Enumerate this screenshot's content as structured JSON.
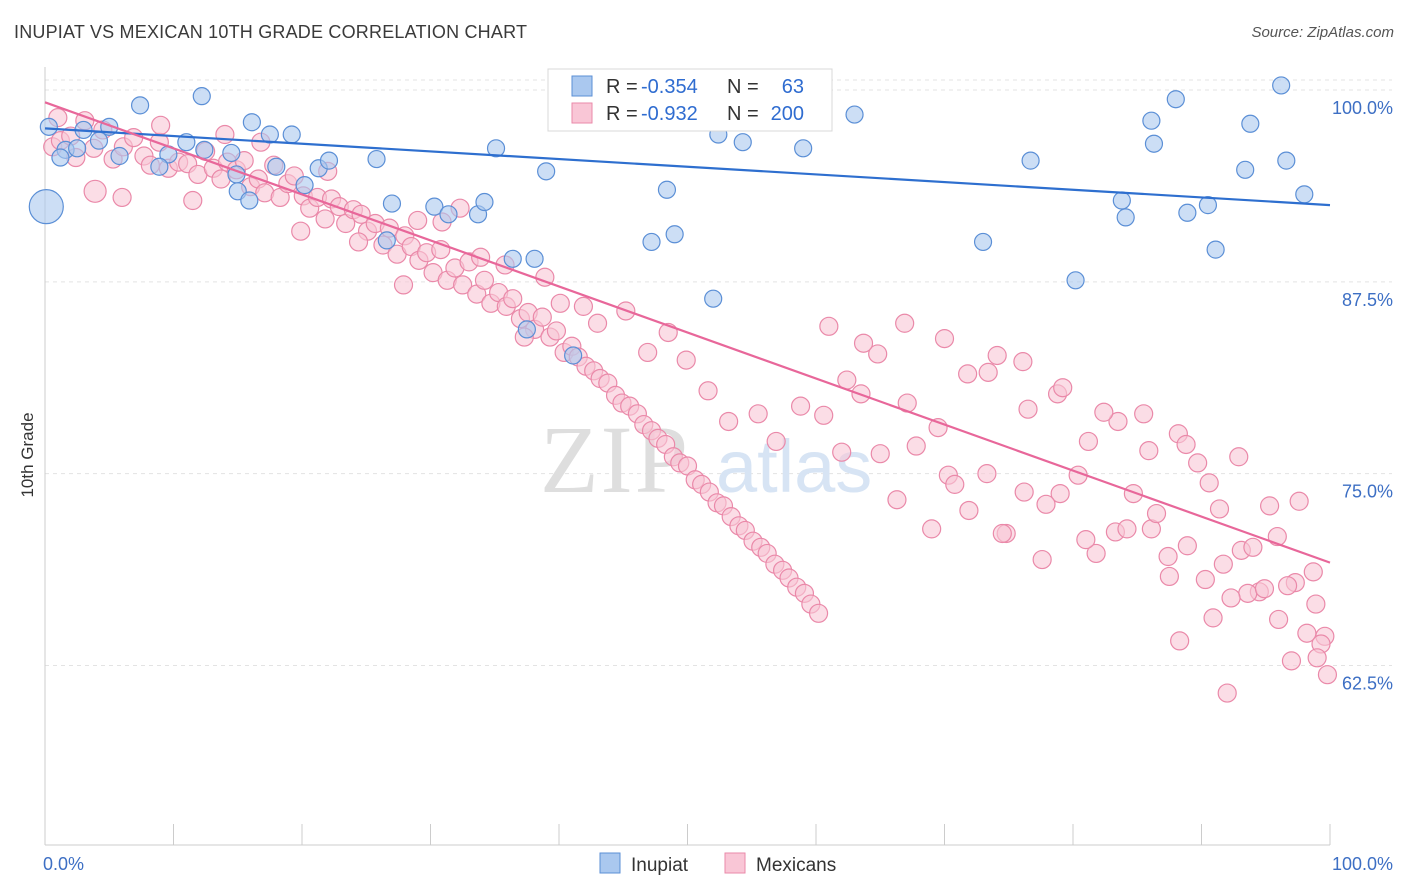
{
  "title": "INUPIAT VS MEXICAN 10TH GRADE CORRELATION CHART",
  "source": "Source: ZipAtlas.com",
  "watermark": {
    "zip": "ZIP",
    "atlas": "atlas"
  },
  "legend_box": {
    "rows": [
      {
        "r_label": "R =",
        "r_value": "-0.354",
        "n_label": "N =",
        "n_value": "63"
      },
      {
        "r_label": "R =",
        "r_value": "-0.932",
        "n_label": "N =",
        "n_value": "200"
      }
    ]
  },
  "colors": {
    "inupiat_fill": "#aac8ef",
    "inupiat_stroke": "#5b8fd6",
    "inupiat_line": "#2e6fcf",
    "mexican_fill": "#f9c6d6",
    "mexican_stroke": "#ea89a9",
    "mexican_line": "#e8679a",
    "axis_text": "#3d6fc4",
    "grid": "#e3e3e3"
  },
  "chart_data": {
    "type": "scatter",
    "title": "INUPIAT VS MEXICAN 10TH GRADE CORRELATION CHART",
    "xlabel": "",
    "ylabel": "10th Grade",
    "xlim": [
      0,
      100
    ],
    "ylim": [
      50.8,
      101.5
    ],
    "x_tick_labels": [
      "0.0%",
      "100.0%"
    ],
    "y_ticks": [
      100.0,
      87.5,
      75.0,
      62.5
    ],
    "y_tick_labels": [
      "100.0%",
      "87.5%",
      "75.0%",
      "62.5%"
    ],
    "grid": true,
    "legend_position": "bottom",
    "series": [
      {
        "name": "Inupiat",
        "R": -0.354,
        "N": 63,
        "trend": {
          "x": [
            0,
            100
          ],
          "y": [
            97.5,
            92.5
          ]
        },
        "points": [
          [
            0.3,
            97.6
          ],
          [
            1.6,
            96.1
          ],
          [
            3.0,
            97.4
          ],
          [
            5.0,
            97.6
          ],
          [
            4.2,
            96.7
          ],
          [
            5.8,
            95.7
          ],
          [
            1.2,
            95.6
          ],
          [
            2.5,
            96.2
          ],
          [
            7.4,
            99.0
          ],
          [
            9.6,
            95.8
          ],
          [
            8.9,
            95.0
          ],
          [
            12.2,
            99.6
          ],
          [
            12.4,
            96.1
          ],
          [
            11.0,
            96.6
          ],
          [
            14.5,
            95.9
          ],
          [
            14.9,
            94.5
          ],
          [
            15.0,
            93.4
          ],
          [
            15.9,
            92.8
          ],
          [
            16.1,
            97.9
          ],
          [
            17.5,
            97.1
          ],
          [
            18.0,
            95.0
          ],
          [
            19.2,
            97.1
          ],
          [
            20.2,
            93.8
          ],
          [
            21.3,
            94.9
          ],
          [
            22.1,
            95.4
          ],
          [
            25.8,
            95.5
          ],
          [
            26.6,
            90.2
          ],
          [
            27.0,
            92.6
          ],
          [
            30.3,
            92.4
          ],
          [
            31.4,
            91.9
          ],
          [
            33.7,
            91.9
          ],
          [
            34.2,
            92.7
          ],
          [
            35.1,
            96.2
          ],
          [
            36.4,
            89.0
          ],
          [
            37.5,
            84.4
          ],
          [
            38.1,
            89.0
          ],
          [
            39.0,
            94.7
          ],
          [
            41.1,
            82.7
          ],
          [
            47.2,
            90.1
          ],
          [
            48.4,
            93.5
          ],
          [
            49.0,
            90.6
          ],
          [
            52.0,
            86.4
          ],
          [
            52.4,
            97.1
          ],
          [
            54.3,
            96.6
          ],
          [
            57.2,
            99.5
          ],
          [
            59.0,
            96.2
          ],
          [
            63.0,
            98.4
          ],
          [
            73.0,
            90.1
          ],
          [
            76.7,
            95.4
          ],
          [
            80.2,
            87.6
          ],
          [
            83.8,
            92.8
          ],
          [
            84.1,
            91.7
          ],
          [
            86.1,
            98.0
          ],
          [
            86.3,
            96.5
          ],
          [
            88.0,
            99.4
          ],
          [
            88.9,
            92.0
          ],
          [
            90.5,
            92.5
          ],
          [
            91.1,
            89.6
          ],
          [
            93.4,
            94.8
          ],
          [
            93.8,
            97.8
          ],
          [
            96.2,
            100.3
          ],
          [
            96.6,
            95.4
          ],
          [
            98.0,
            93.2
          ]
        ]
      },
      {
        "name": "Mexicans",
        "R": -0.932,
        "N": 200,
        "trend": {
          "x": [
            0,
            100
          ],
          "y": [
            99.2,
            69.2
          ]
        },
        "points": [
          [
            0.6,
            96.3
          ],
          [
            1.2,
            96.7
          ],
          [
            2.4,
            95.6
          ],
          [
            3.8,
            96.2
          ],
          [
            4.5,
            97.4
          ],
          [
            5.3,
            95.5
          ],
          [
            6.1,
            96.3
          ],
          [
            6.9,
            96.9
          ],
          [
            7.7,
            95.7
          ],
          [
            8.2,
            95.1
          ],
          [
            8.9,
            96.6
          ],
          [
            9.6,
            94.9
          ],
          [
            10.4,
            95.3
          ],
          [
            11.1,
            95.2
          ],
          [
            11.9,
            94.5
          ],
          [
            12.5,
            96.0
          ],
          [
            13.1,
            94.9
          ],
          [
            13.7,
            94.2
          ],
          [
            14.2,
            95.3
          ],
          [
            14.9,
            94.8
          ],
          [
            15.5,
            95.4
          ],
          [
            16.0,
            93.7
          ],
          [
            16.6,
            94.2
          ],
          [
            17.1,
            93.3
          ],
          [
            17.8,
            95.1
          ],
          [
            18.3,
            93.0
          ],
          [
            18.9,
            93.9
          ],
          [
            19.4,
            94.4
          ],
          [
            20.1,
            93.1
          ],
          [
            20.6,
            92.3
          ],
          [
            21.2,
            93.0
          ],
          [
            21.8,
            91.6
          ],
          [
            22.3,
            92.9
          ],
          [
            22.9,
            92.4
          ],
          [
            23.4,
            91.3
          ],
          [
            24.0,
            92.2
          ],
          [
            24.6,
            91.9
          ],
          [
            25.1,
            90.8
          ],
          [
            25.7,
            91.3
          ],
          [
            26.3,
            89.9
          ],
          [
            26.8,
            91.0
          ],
          [
            27.4,
            89.3
          ],
          [
            28.0,
            90.5
          ],
          [
            28.5,
            89.8
          ],
          [
            29.1,
            88.9
          ],
          [
            29.7,
            89.4
          ],
          [
            30.2,
            88.1
          ],
          [
            30.8,
            89.6
          ],
          [
            31.3,
            87.6
          ],
          [
            31.9,
            88.4
          ],
          [
            32.5,
            87.3
          ],
          [
            33.0,
            88.8
          ],
          [
            33.6,
            86.7
          ],
          [
            34.2,
            87.6
          ],
          [
            34.7,
            86.1
          ],
          [
            35.3,
            86.8
          ],
          [
            35.9,
            85.9
          ],
          [
            36.4,
            86.4
          ],
          [
            37.0,
            85.1
          ],
          [
            37.6,
            85.5
          ],
          [
            38.1,
            84.4
          ],
          [
            38.7,
            85.2
          ],
          [
            39.3,
            83.9
          ],
          [
            39.8,
            84.3
          ],
          [
            40.4,
            82.9
          ],
          [
            41.0,
            83.3
          ],
          [
            41.5,
            82.6
          ],
          [
            42.1,
            82.0
          ],
          [
            42.7,
            81.7
          ],
          [
            43.2,
            81.2
          ],
          [
            43.8,
            80.9
          ],
          [
            44.4,
            80.1
          ],
          [
            44.9,
            79.6
          ],
          [
            45.5,
            79.4
          ],
          [
            46.1,
            78.9
          ],
          [
            46.6,
            78.2
          ],
          [
            47.2,
            77.8
          ],
          [
            47.7,
            77.3
          ],
          [
            48.3,
            76.9
          ],
          [
            48.9,
            76.1
          ],
          [
            49.4,
            75.7
          ],
          [
            50.0,
            75.5
          ],
          [
            50.6,
            74.6
          ],
          [
            51.1,
            74.3
          ],
          [
            51.7,
            73.8
          ],
          [
            52.3,
            73.1
          ],
          [
            52.8,
            72.9
          ],
          [
            53.4,
            72.2
          ],
          [
            54.0,
            71.6
          ],
          [
            54.5,
            71.3
          ],
          [
            55.1,
            70.6
          ],
          [
            55.7,
            70.2
          ],
          [
            56.2,
            69.8
          ],
          [
            56.8,
            69.1
          ],
          [
            57.4,
            68.7
          ],
          [
            57.9,
            68.2
          ],
          [
            58.5,
            67.6
          ],
          [
            59.1,
            67.2
          ],
          [
            59.6,
            66.5
          ],
          [
            60.2,
            65.9
          ],
          [
            1.0,
            98.2
          ],
          [
            2.0,
            97.0
          ],
          [
            3.1,
            98.0
          ],
          [
            6.0,
            93.0
          ],
          [
            9.0,
            97.7
          ],
          [
            11.5,
            92.8
          ],
          [
            14.0,
            97.1
          ],
          [
            16.8,
            96.6
          ],
          [
            19.9,
            90.8
          ],
          [
            22.0,
            94.7
          ],
          [
            24.4,
            90.1
          ],
          [
            27.9,
            87.3
          ],
          [
            29.0,
            91.5
          ],
          [
            30.9,
            91.4
          ],
          [
            32.3,
            92.3
          ],
          [
            33.9,
            89.1
          ],
          [
            35.8,
            88.6
          ],
          [
            37.3,
            83.9
          ],
          [
            38.9,
            87.8
          ],
          [
            40.1,
            86.1
          ],
          [
            41.9,
            85.9
          ],
          [
            43.0,
            84.8
          ],
          [
            45.2,
            85.6
          ],
          [
            46.9,
            82.9
          ],
          [
            48.5,
            84.2
          ],
          [
            49.9,
            82.4
          ],
          [
            51.6,
            80.4
          ],
          [
            53.2,
            78.4
          ],
          [
            55.5,
            78.9
          ],
          [
            56.9,
            77.1
          ],
          [
            58.8,
            79.4
          ],
          [
            60.6,
            78.8
          ],
          [
            62.0,
            76.4
          ],
          [
            63.5,
            80.2
          ],
          [
            65.0,
            76.3
          ],
          [
            66.3,
            73.3
          ],
          [
            67.8,
            76.8
          ],
          [
            69.0,
            71.4
          ],
          [
            70.3,
            74.9
          ],
          [
            71.9,
            72.6
          ],
          [
            73.3,
            75.0
          ],
          [
            74.8,
            71.1
          ],
          [
            76.2,
            73.8
          ],
          [
            77.6,
            69.4
          ],
          [
            79.0,
            73.7
          ],
          [
            80.4,
            74.9
          ],
          [
            81.8,
            69.8
          ],
          [
            83.3,
            71.2
          ],
          [
            84.7,
            73.7
          ],
          [
            86.1,
            71.4
          ],
          [
            87.5,
            68.3
          ],
          [
            88.9,
            70.3
          ],
          [
            90.3,
            68.1
          ],
          [
            91.7,
            69.1
          ],
          [
            93.1,
            70.0
          ],
          [
            94.5,
            67.3
          ],
          [
            95.9,
            70.9
          ],
          [
            97.3,
            67.9
          ],
          [
            98.7,
            68.6
          ],
          [
            99.6,
            64.4
          ],
          [
            62.4,
            81.1
          ],
          [
            64.8,
            82.8
          ],
          [
            67.1,
            79.6
          ],
          [
            69.5,
            78.0
          ],
          [
            71.8,
            81.5
          ],
          [
            74.1,
            82.7
          ],
          [
            76.5,
            79.2
          ],
          [
            78.8,
            80.2
          ],
          [
            81.2,
            77.1
          ],
          [
            83.5,
            78.4
          ],
          [
            85.9,
            76.5
          ],
          [
            88.2,
            77.6
          ],
          [
            90.6,
            74.4
          ],
          [
            92.9,
            76.1
          ],
          [
            95.3,
            72.9
          ],
          [
            97.6,
            73.2
          ],
          [
            61.0,
            84.6
          ],
          [
            63.7,
            83.5
          ],
          [
            66.9,
            84.8
          ],
          [
            70.0,
            83.8
          ],
          [
            73.4,
            81.6
          ],
          [
            76.1,
            82.3
          ],
          [
            79.2,
            80.6
          ],
          [
            82.4,
            79.0
          ],
          [
            85.5,
            78.9
          ],
          [
            88.8,
            76.9
          ],
          [
            91.4,
            72.7
          ],
          [
            94.0,
            70.2
          ],
          [
            96.7,
            67.7
          ],
          [
            98.9,
            66.5
          ],
          [
            70.8,
            74.3
          ],
          [
            74.5,
            71.1
          ],
          [
            77.9,
            73.0
          ],
          [
            81.0,
            70.7
          ],
          [
            84.2,
            71.4
          ],
          [
            87.4,
            69.6
          ],
          [
            90.9,
            65.6
          ],
          [
            93.6,
            67.2
          ],
          [
            96.0,
            65.5
          ],
          [
            99.3,
            63.9
          ],
          [
            86.5,
            72.4
          ],
          [
            89.7,
            75.7
          ],
          [
            92.3,
            66.9
          ],
          [
            94.9,
            67.5
          ],
          [
            97.0,
            62.8
          ],
          [
            98.2,
            64.6
          ],
          [
            99.0,
            63.0
          ],
          [
            88.3,
            64.1
          ],
          [
            92.0,
            60.7
          ],
          [
            99.8,
            61.9
          ]
        ]
      }
    ]
  }
}
